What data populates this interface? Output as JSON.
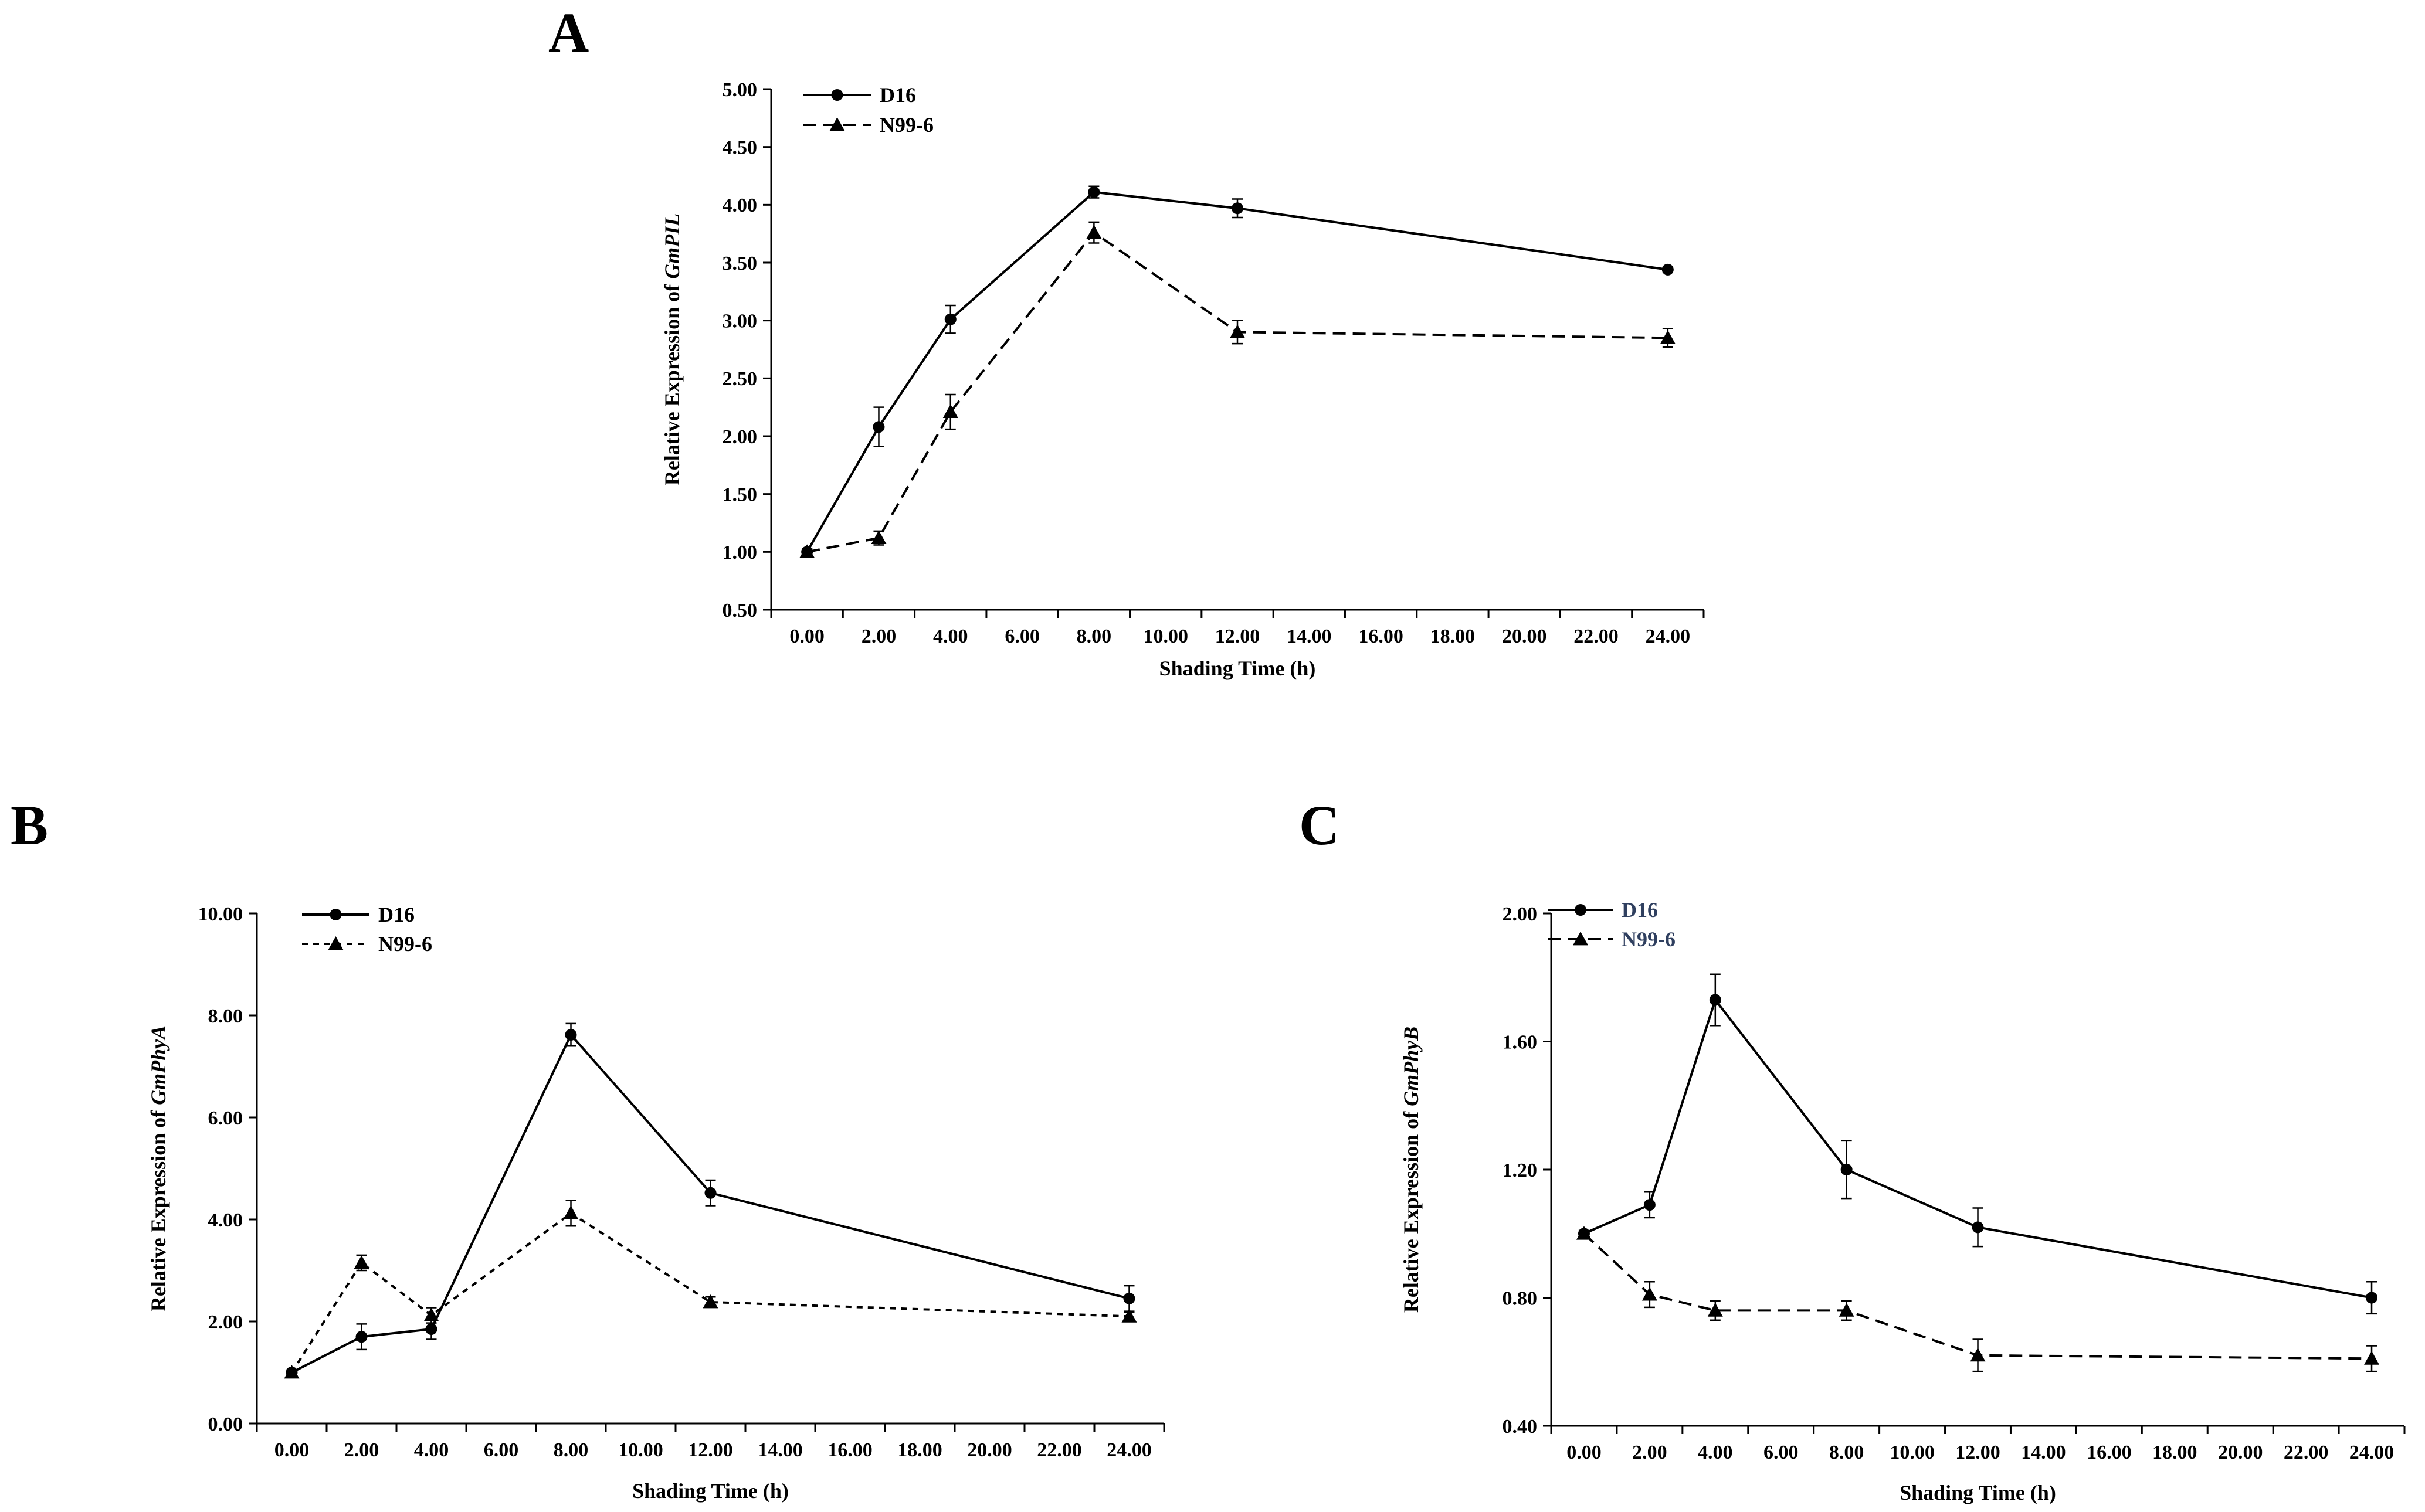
{
  "chart_data": [
    {
      "panel": "A",
      "type": "line",
      "gene": "GmPIL",
      "ylabel_prefix": "Relative Expression of ",
      "xlabel": "Shading Time (h)",
      "ylim": [
        0.5,
        5.0
      ],
      "yticks": [
        "0.50",
        "1.00",
        "1.50",
        "2.00",
        "2.50",
        "3.00",
        "3.50",
        "4.00",
        "4.50",
        "5.00"
      ],
      "xlim": [
        -1,
        25
      ],
      "xticks": [
        "0.00",
        "2.00",
        "4.00",
        "6.00",
        "8.00",
        "10.00",
        "12.00",
        "14.00",
        "16.00",
        "18.00",
        "20.00",
        "22.00",
        "24.00"
      ],
      "legend_color": "#000000",
      "series": [
        {
          "name": "D16",
          "marker": "circle",
          "style": "solid",
          "x": [
            0,
            2,
            4,
            8,
            12,
            24
          ],
          "values": [
            1.0,
            2.08,
            3.01,
            4.11,
            3.97,
            3.44
          ],
          "err": [
            0.03,
            0.17,
            0.12,
            0.05,
            0.08,
            0.02
          ]
        },
        {
          "name": "N99-6",
          "marker": "triangle",
          "style": "dashed",
          "x": [
            0,
            2,
            4,
            8,
            12,
            24
          ],
          "values": [
            1.0,
            1.12,
            2.21,
            3.76,
            2.9,
            2.85
          ],
          "err": [
            0.03,
            0.06,
            0.15,
            0.09,
            0.1,
            0.08
          ]
        }
      ]
    },
    {
      "panel": "B",
      "type": "line",
      "gene": "GmPhyA",
      "ylabel_prefix": "Relative Expression of ",
      "xlabel": "Shading Time (h)",
      "ylim": [
        0,
        10
      ],
      "yticks": [
        "0.00",
        "2.00",
        "4.00",
        "6.00",
        "8.00",
        "10.00"
      ],
      "xlim": [
        -1,
        25
      ],
      "xticks": [
        "0.00",
        "2.00",
        "4.00",
        "6.00",
        "8.00",
        "10.00",
        "12.00",
        "14.00",
        "16.00",
        "18.00",
        "20.00",
        "22.00",
        "24.00"
      ],
      "legend_color": "#000000",
      "series": [
        {
          "name": "D16",
          "marker": "circle",
          "style": "solid",
          "x": [
            0,
            2,
            4,
            8,
            12,
            24
          ],
          "values": [
            1.0,
            1.7,
            1.85,
            7.62,
            4.52,
            2.45
          ],
          "err": [
            0.05,
            0.25,
            0.2,
            0.22,
            0.25,
            0.25
          ]
        },
        {
          "name": "N99-6",
          "marker": "triangle",
          "style": "dotted",
          "x": [
            0,
            2,
            4,
            8,
            12,
            24
          ],
          "values": [
            1.0,
            3.15,
            2.12,
            4.12,
            2.38,
            2.1
          ],
          "err": [
            0.05,
            0.15,
            0.15,
            0.25,
            0.1,
            0.08
          ]
        }
      ]
    },
    {
      "panel": "C",
      "type": "line",
      "gene": "GmPhyB",
      "ylabel_prefix": "Relative Expression of ",
      "xlabel": "Shading Time (h)",
      "ylim": [
        0.4,
        2.0
      ],
      "yticks": [
        "0.40",
        "0.80",
        "1.20",
        "1.60",
        "2.00"
      ],
      "xlim": [
        -1,
        25
      ],
      "xticks": [
        "0.00",
        "2.00",
        "4.00",
        "6.00",
        "8.00",
        "10.00",
        "12.00",
        "14.00",
        "16.00",
        "18.00",
        "20.00",
        "22.00",
        "24.00"
      ],
      "legend_color": "#2f3f5f",
      "series": [
        {
          "name": "D16",
          "marker": "circle",
          "style": "solid",
          "x": [
            0,
            2,
            4,
            8,
            12,
            24
          ],
          "values": [
            1.0,
            1.09,
            1.73,
            1.2,
            1.02,
            0.8
          ],
          "err": [
            0.01,
            0.04,
            0.08,
            0.09,
            0.06,
            0.05
          ]
        },
        {
          "name": "N99-6",
          "marker": "triangle",
          "style": "dashed",
          "x": [
            0,
            2,
            4,
            8,
            12,
            24
          ],
          "values": [
            1.0,
            0.81,
            0.76,
            0.76,
            0.62,
            0.61
          ],
          "err": [
            0.01,
            0.04,
            0.03,
            0.03,
            0.05,
            0.04
          ]
        }
      ]
    }
  ]
}
